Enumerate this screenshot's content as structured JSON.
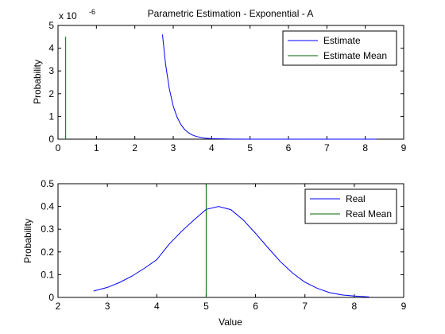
{
  "colors": {
    "estimate": "#0000ff",
    "mean": "#006400",
    "axis": "#000000",
    "background": "#ffffff"
  },
  "chart_data": [
    {
      "type": "line",
      "title": "Parametric Estimation - Exponential - A",
      "xlabel": "",
      "ylabel": "Probability",
      "exponent_label": "x 10",
      "exponent_value": "-6",
      "xlim": [
        0,
        9
      ],
      "ylim": [
        0,
        5
      ],
      "xticks": [
        "0",
        "1",
        "2",
        "3",
        "4",
        "5",
        "6",
        "7",
        "8",
        "9"
      ],
      "yticks": [
        "0",
        "1",
        "2",
        "3",
        "4",
        "5"
      ],
      "legend": {
        "placement": "top-right",
        "entries": [
          "Estimate",
          "Estimate Mean"
        ]
      },
      "series": [
        {
          "name": "Estimate",
          "x": [
            2.72,
            2.8,
            2.9,
            3.0,
            3.1,
            3.2,
            3.3,
            3.4,
            3.5,
            3.6,
            3.8,
            4.0,
            4.5,
            5.0,
            6.0,
            7.0,
            8.3
          ],
          "y": [
            4.6,
            3.3,
            2.2,
            1.45,
            0.97,
            0.64,
            0.42,
            0.28,
            0.18,
            0.12,
            0.05,
            0.02,
            0.005,
            0.001,
            0,
            0,
            0
          ]
        }
      ],
      "vlines": [
        {
          "name": "Estimate Mean",
          "x": 0.2,
          "ymax": 4.5
        }
      ]
    },
    {
      "type": "line",
      "title": "",
      "xlabel": "Value",
      "ylabel": "Probability",
      "xlim": [
        2,
        9
      ],
      "ylim": [
        0,
        0.5
      ],
      "xticks": [
        "2",
        "3",
        "4",
        "5",
        "6",
        "7",
        "8",
        "9"
      ],
      "yticks": [
        "0",
        "0.1",
        "0.2",
        "0.3",
        "0.4",
        "0.5"
      ],
      "legend": {
        "placement": "top-right",
        "entries": [
          "Real",
          "Real Mean"
        ]
      },
      "series": [
        {
          "name": "Real",
          "x": [
            2.72,
            3.0,
            3.25,
            3.5,
            3.75,
            4.0,
            4.25,
            4.5,
            4.75,
            5.0,
            5.25,
            5.5,
            5.75,
            6.0,
            6.25,
            6.5,
            6.75,
            7.0,
            7.25,
            7.5,
            7.75,
            8.0,
            8.3
          ],
          "y": [
            0.028,
            0.044,
            0.066,
            0.094,
            0.128,
            0.166,
            0.234,
            0.29,
            0.34,
            0.387,
            0.4,
            0.386,
            0.341,
            0.282,
            0.219,
            0.158,
            0.107,
            0.067,
            0.04,
            0.021,
            0.011,
            0.006,
            0.002
          ]
        }
      ],
      "vlines": [
        {
          "name": "Real Mean",
          "x": 5.0,
          "ymax": 0.5
        }
      ]
    }
  ]
}
